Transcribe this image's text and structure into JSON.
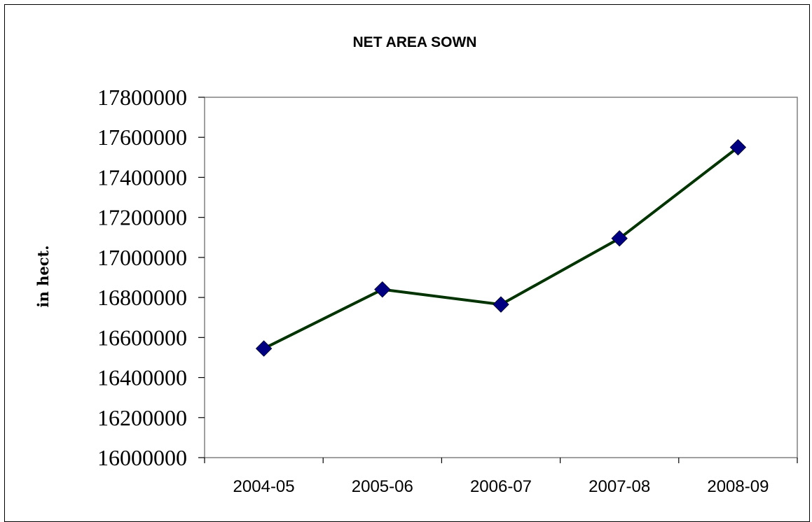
{
  "chart_data": {
    "type": "line",
    "title": "NET AREA SOWN",
    "xlabel": "",
    "ylabel": "in hect.",
    "categories": [
      "2004-05",
      "2005-06",
      "2006-07",
      "2007-08",
      "2008-09"
    ],
    "series": [
      {
        "values": [
          16545000,
          16840000,
          16765000,
          17095000,
          17550000
        ]
      }
    ],
    "ylim": [
      16000000,
      17800000
    ],
    "yticks": [
      "16000000",
      "16200000",
      "16400000",
      "16600000",
      "16800000",
      "17000000",
      "17200000",
      "17400000",
      "17600000",
      "17800000"
    ],
    "grid": false,
    "legend": "none",
    "colors": {
      "line": "#003300",
      "marker": "#000080",
      "plot_border": "#808080"
    }
  }
}
